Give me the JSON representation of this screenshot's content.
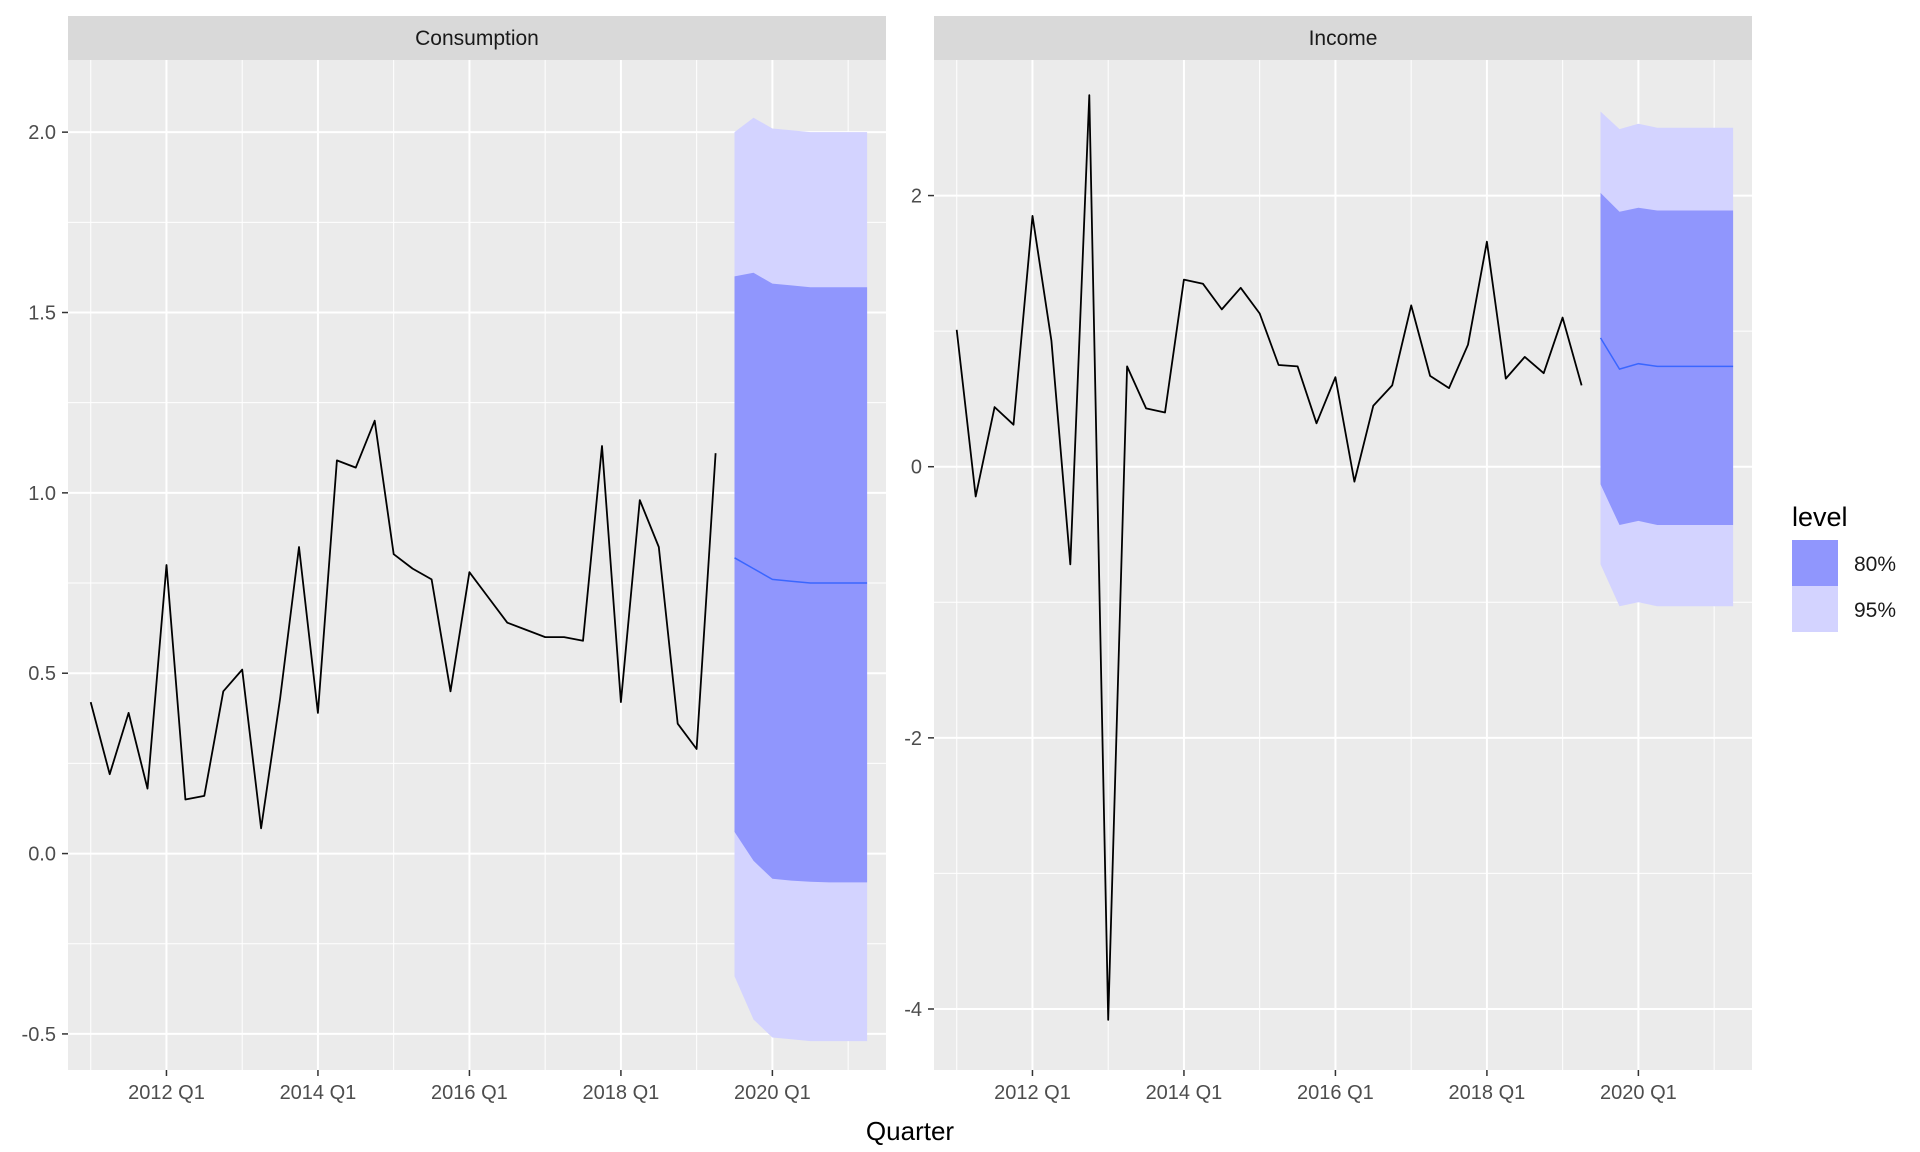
{
  "chart_data": {
    "type": "line",
    "xlabel": "Quarter",
    "x_ticks": [
      "2012 Q1",
      "2014 Q1",
      "2016 Q1",
      "2018 Q1",
      "2020 Q1"
    ],
    "grid": true,
    "legend": {
      "title": "level",
      "position": "right",
      "items": [
        {
          "label": "80%",
          "color": "#9096fd"
        },
        {
          "label": "95%",
          "color": "#d3d3ff"
        }
      ]
    },
    "colors": {
      "panel_bg": "#ebebeb",
      "strip_bg": "#d9d9d9",
      "grid": "#ffffff",
      "history_line": "#000000",
      "forecast_line": "#3a66ff",
      "band_80": "#9096fd",
      "band_95": "#d3d3ff"
    },
    "panels": [
      {
        "title": "Consumption",
        "ylim": [
          -0.6,
          2.2
        ],
        "y_ticks": [
          -0.5,
          0.0,
          0.5,
          1.0,
          1.5,
          2.0
        ],
        "y_tick_labels": [
          "-0.5",
          "0.0",
          "0.5",
          "1.0",
          "1.5",
          "2.0"
        ],
        "history": {
          "start": "2011 Q1",
          "values": [
            0.42,
            0.22,
            0.39,
            0.18,
            0.8,
            0.15,
            0.16,
            0.45,
            0.51,
            0.07,
            0.43,
            0.85,
            0.39,
            1.09,
            1.07,
            1.2,
            0.83,
            0.79,
            0.76,
            0.45,
            0.78,
            0.71,
            0.64,
            0.62,
            0.6,
            0.6,
            0.59,
            1.13,
            0.42,
            0.98,
            0.85,
            0.36,
            0.29,
            1.11
          ]
        },
        "forecast": {
          "start": "2019 Q3",
          "mean": [
            0.82,
            0.79,
            0.76,
            0.755,
            0.75,
            0.75,
            0.75,
            0.75
          ],
          "lo80": [
            0.06,
            -0.02,
            -0.07,
            -0.075,
            -0.078,
            -0.08,
            -0.08,
            -0.08
          ],
          "hi80": [
            1.6,
            1.61,
            1.58,
            1.575,
            1.57,
            1.57,
            1.57,
            1.57
          ],
          "lo95": [
            -0.34,
            -0.46,
            -0.51,
            -0.515,
            -0.52,
            -0.52,
            -0.52,
            -0.52
          ],
          "hi95": [
            2.0,
            2.04,
            2.01,
            2.005,
            2.0,
            2.0,
            2.0,
            2.0
          ]
        }
      },
      {
        "title": "Income",
        "ylim": [
          -4.45,
          3.0
        ],
        "y_ticks": [
          -4,
          -2,
          0,
          2
        ],
        "y_tick_labels": [
          "-4",
          "-2",
          "0",
          "2"
        ],
        "history": {
          "start": "2011 Q1",
          "values": [
            1.01,
            -0.22,
            0.44,
            0.31,
            1.85,
            0.93,
            -0.72,
            2.74,
            -4.08,
            0.74,
            0.43,
            0.4,
            1.38,
            1.35,
            1.16,
            1.32,
            1.13,
            0.75,
            0.74,
            0.32,
            0.66,
            -0.11,
            0.45,
            0.6,
            1.19,
            0.67,
            0.58,
            0.9,
            1.66,
            0.65,
            0.81,
            0.69,
            1.1,
            0.6
          ]
        },
        "forecast": {
          "start": "2019 Q3",
          "mean": [
            0.95,
            0.72,
            0.76,
            0.74,
            0.74,
            0.74,
            0.74,
            0.74
          ],
          "lo80": [
            -0.13,
            -0.43,
            -0.4,
            -0.43,
            -0.43,
            -0.43,
            -0.43,
            -0.43
          ],
          "hi80": [
            2.02,
            1.88,
            1.91,
            1.89,
            1.89,
            1.89,
            1.89,
            1.89
          ],
          "lo95": [
            -0.72,
            -1.03,
            -1.0,
            -1.03,
            -1.03,
            -1.03,
            -1.03,
            -1.03
          ],
          "hi95": [
            2.62,
            2.49,
            2.53,
            2.5,
            2.5,
            2.5,
            2.5,
            2.5
          ]
        }
      }
    ]
  }
}
